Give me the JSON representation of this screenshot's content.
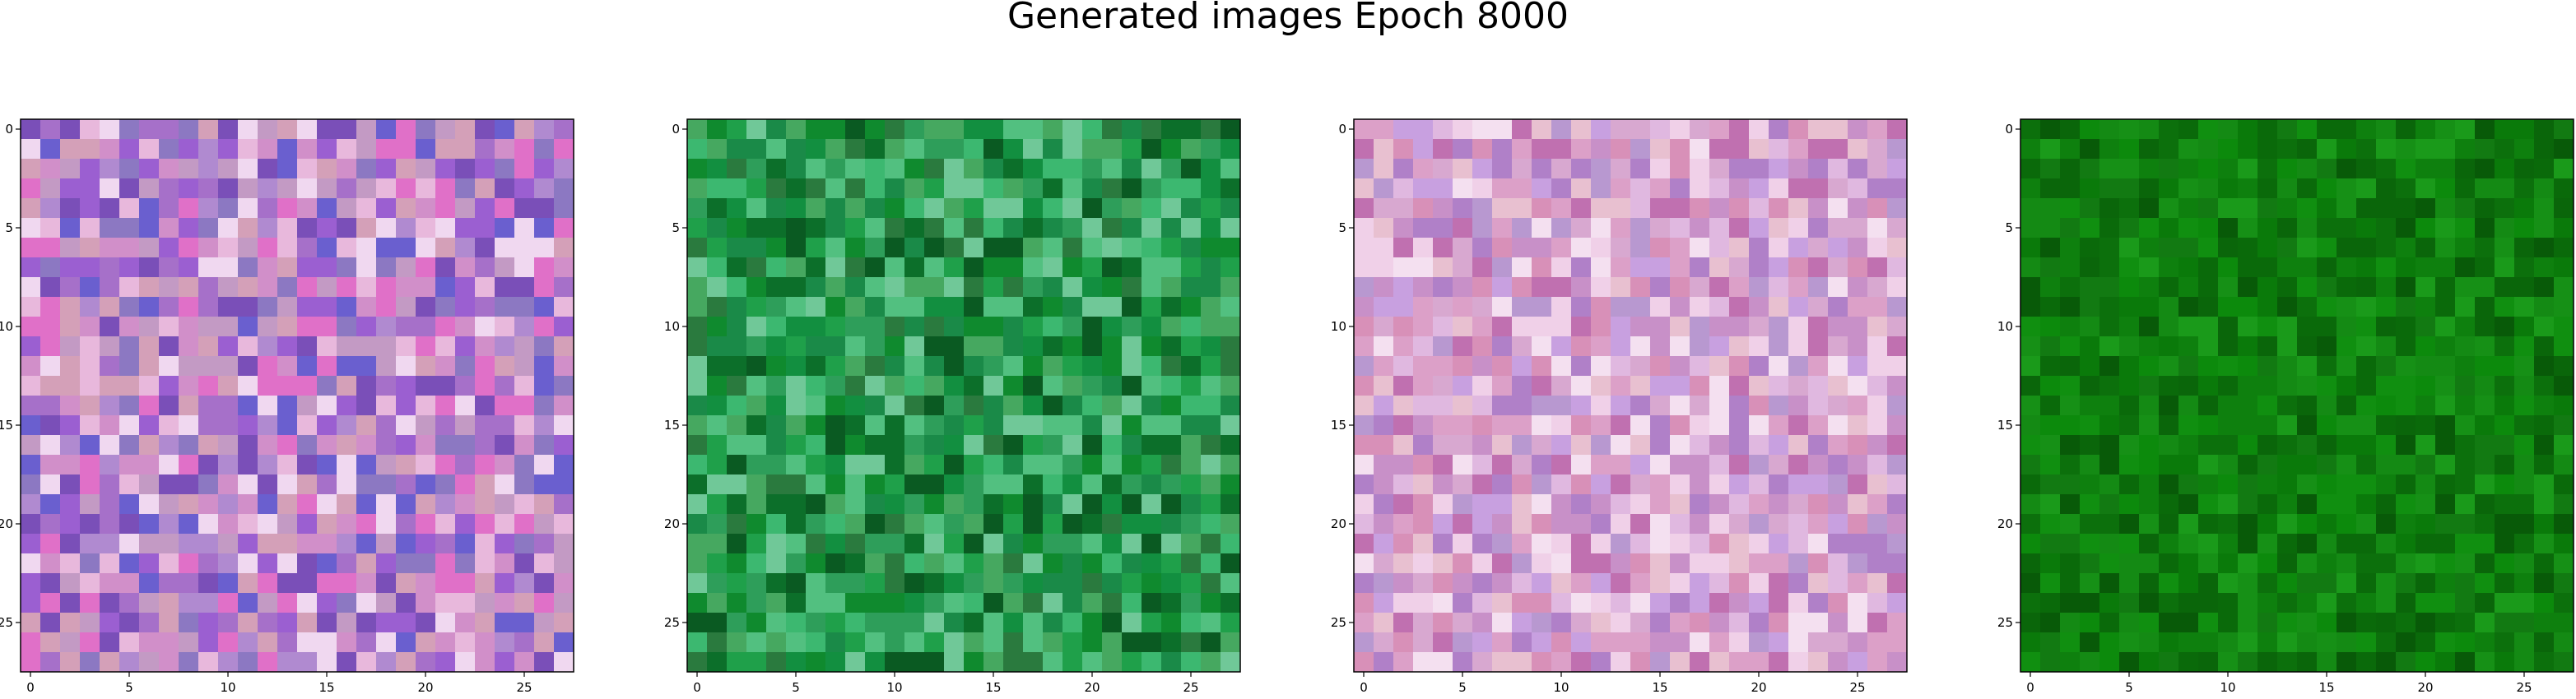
{
  "figure": {
    "title": "Generated images Epoch 8000"
  },
  "chart_data": [
    {
      "type": "heatmap",
      "grid": [
        28,
        28
      ],
      "xlim": [
        -0.5,
        27.5
      ],
      "ylim": [
        27.5,
        -0.5
      ],
      "xticks": [
        "0",
        "5",
        "10",
        "15",
        "20",
        "25"
      ],
      "yticks": [
        "0",
        "5",
        "10",
        "15",
        "20",
        "25"
      ],
      "palette": [
        "#c39ac4",
        "#d18fc9",
        "#a670c9",
        "#8c78c2",
        "#e8b8dc",
        "#d4a0b8",
        "#b08ad0",
        "#9b5fd1",
        "#7a4fb8",
        "#f0d8f0",
        "#6a5fcf",
        "#e070c8"
      ]
    },
    {
      "type": "heatmap",
      "grid": [
        28,
        28
      ],
      "xlim": [
        -0.5,
        27.5
      ],
      "ylim": [
        27.5,
        -0.5
      ],
      "xticks": [
        "0",
        "5",
        "10",
        "15",
        "20",
        "25"
      ],
      "yticks": [
        "0",
        "5",
        "10",
        "15",
        "20",
        "25"
      ],
      "palette": [
        "#0f8a2e",
        "#1fa04a",
        "#2e9e5a",
        "#0c6f2a",
        "#3cb870",
        "#1a8a48",
        "#52c080",
        "#0a5a22",
        "#2a7a3e",
        "#46a860",
        "#128f40",
        "#70c898"
      ]
    },
    {
      "type": "heatmap",
      "grid": [
        28,
        28
      ],
      "xlim": [
        -0.5,
        27.5
      ],
      "ylim": [
        27.5,
        -0.5
      ],
      "xticks": [
        "0",
        "5",
        "10",
        "15",
        "20",
        "25"
      ],
      "yticks": [
        "0",
        "5",
        "10",
        "15",
        "20",
        "25"
      ],
      "palette": [
        "#d8a8d0",
        "#e0b8e0",
        "#c890c8",
        "#b080c8",
        "#f0d0e8",
        "#d890b8",
        "#c8a0e0",
        "#e8c0d0",
        "#b898d0",
        "#dca0c8",
        "#f4e0f0",
        "#c070b0"
      ]
    },
    {
      "type": "heatmap",
      "grid": [
        28,
        28
      ],
      "xlim": [
        -0.5,
        27.5
      ],
      "ylim": [
        27.5,
        -0.5
      ],
      "xticks": [
        "0",
        "5",
        "10",
        "15",
        "20",
        "25"
      ],
      "yticks": [
        "0",
        "5",
        "10",
        "15",
        "20",
        "25"
      ],
      "palette": [
        "#0a7a0a",
        "#0c8a0c",
        "#108f10",
        "#0a6a0a",
        "#127a12",
        "#0e800e",
        "#1a9a1a",
        "#085a08",
        "#148a14",
        "#0c700c",
        "#169016",
        "#0a660a"
      ]
    }
  ]
}
